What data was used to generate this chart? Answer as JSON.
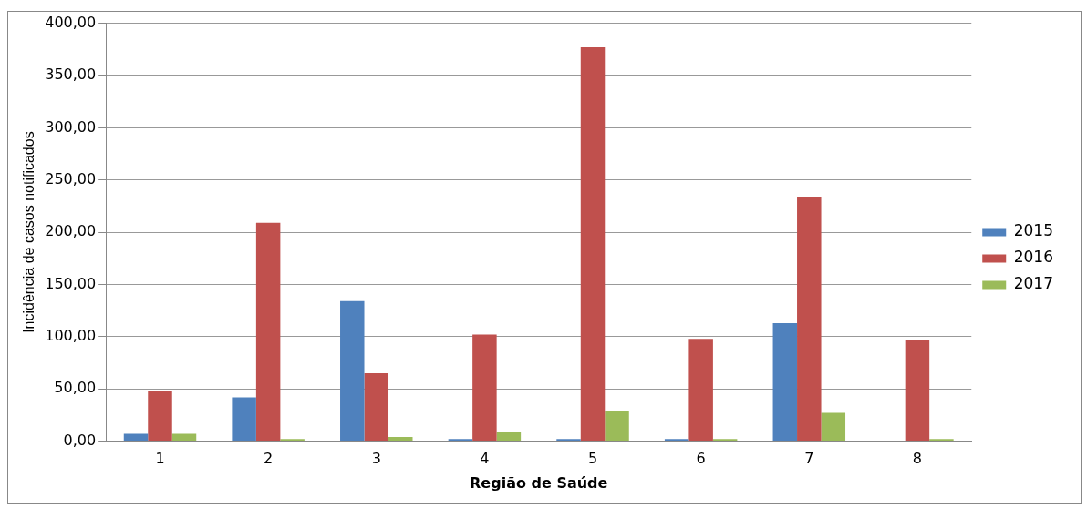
{
  "chart_data": {
    "type": "bar",
    "xlabel": "Região de Saúde",
    "ylabel": "Incidência de casos notificados",
    "categories": [
      "1",
      "2",
      "3",
      "4",
      "5",
      "6",
      "7",
      "8"
    ],
    "series": [
      {
        "name": "2015",
        "color": "#4f81bd",
        "values": [
          7,
          42,
          134,
          2,
          2,
          2,
          113,
          0
        ]
      },
      {
        "name": "2016",
        "color": "#c0504d",
        "values": [
          48,
          209,
          65,
          102,
          377,
          98,
          234,
          97
        ]
      },
      {
        "name": "2017",
        "color": "#9bbb59",
        "values": [
          7,
          2,
          4,
          9,
          29,
          2,
          27,
          2
        ]
      }
    ],
    "ylim": [
      0,
      400
    ],
    "yticks": [
      {
        "value": 0,
        "label": "0,00"
      },
      {
        "value": 50,
        "label": "50,00"
      },
      {
        "value": 100,
        "label": "100,00"
      },
      {
        "value": 150,
        "label": "150,00"
      },
      {
        "value": 200,
        "label": "200,00"
      },
      {
        "value": 250,
        "label": "250,00"
      },
      {
        "value": 300,
        "label": "300,00"
      },
      {
        "value": 350,
        "label": "350,00"
      },
      {
        "value": 400,
        "label": "400,00"
      }
    ],
    "grid": "y",
    "legend": "right"
  }
}
